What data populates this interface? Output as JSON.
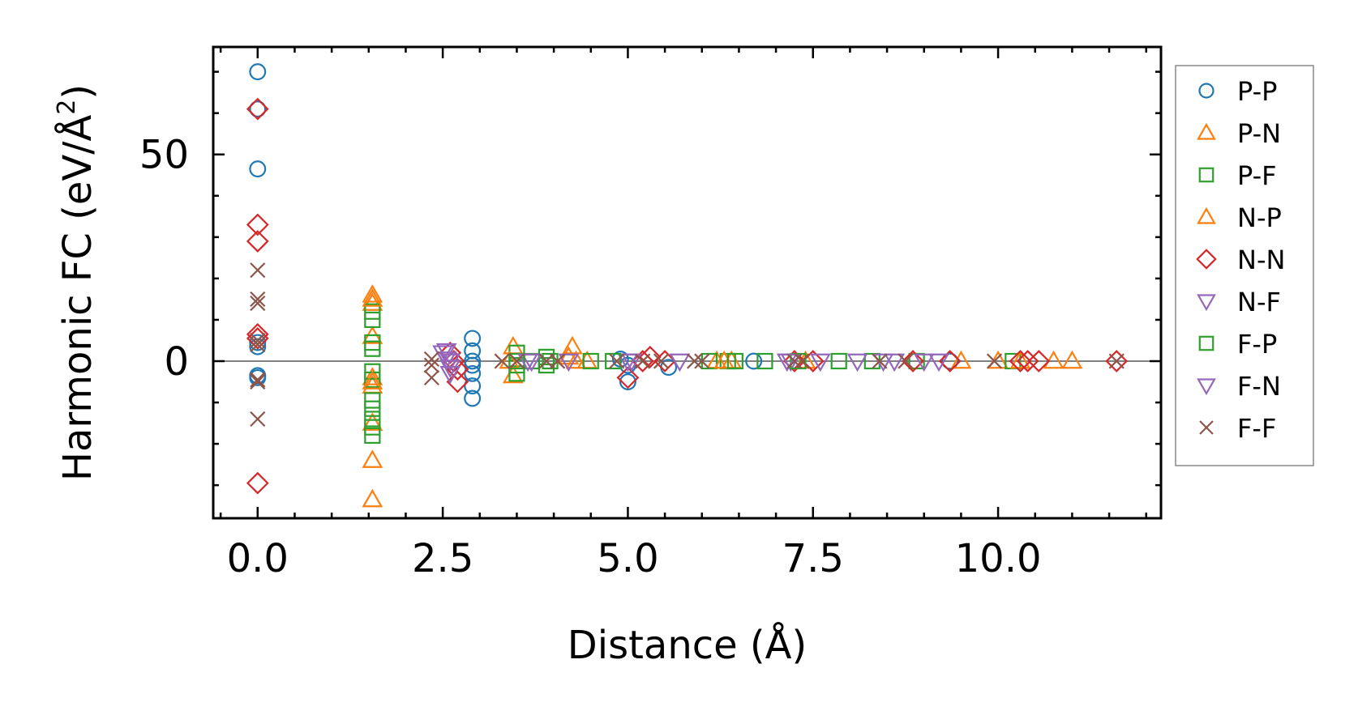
{
  "chart_data": {
    "type": "scatter",
    "xlabel": "Distance (Å)",
    "ylabel": "Harmonic FC (eV/Å²)",
    "ylabel_parts": {
      "main": "Harmonic FC (eV/Å",
      "sup": "2",
      "end": ")"
    },
    "xlim": [
      -0.6,
      12.2
    ],
    "ylim": [
      -38,
      76
    ],
    "x_ticks": [
      0.0,
      2.5,
      5.0,
      7.5,
      10.0
    ],
    "x_tick_labels": [
      "0.0",
      "2.5",
      "5.0",
      "7.5",
      "10.0"
    ],
    "y_ticks": [
      0,
      50
    ],
    "y_tick_labels": [
      "0",
      "50"
    ],
    "zero_line": true,
    "legend_position": "outside-right",
    "series": [
      {
        "name": "P-P",
        "marker": "circle",
        "color": "#1f77b4",
        "points": [
          [
            0,
            70
          ],
          [
            0,
            61
          ],
          [
            0,
            46.5
          ],
          [
            0,
            4.5
          ],
          [
            0,
            3.5
          ],
          [
            0,
            -3.5
          ],
          [
            0,
            -4
          ],
          [
            2.9,
            5.5
          ],
          [
            2.9,
            2.5
          ],
          [
            2.9,
            0
          ],
          [
            2.9,
            -1
          ],
          [
            2.9,
            -3
          ],
          [
            2.9,
            -6
          ],
          [
            2.9,
            -9
          ],
          [
            4.9,
            0.5
          ],
          [
            5.0,
            -5
          ],
          [
            5.0,
            -1
          ],
          [
            5.55,
            -1.5
          ],
          [
            6.7,
            0
          ],
          [
            9.35,
            0
          ]
        ]
      },
      {
        "name": "P-N",
        "marker": "triangle-up",
        "color": "#ff7f0e",
        "points": [
          [
            1.55,
            16
          ],
          [
            1.55,
            14
          ],
          [
            1.55,
            6
          ],
          [
            1.55,
            -4
          ],
          [
            1.55,
            -6
          ],
          [
            1.55,
            -15
          ],
          [
            1.55,
            -24
          ],
          [
            1.55,
            -33.5
          ],
          [
            3.45,
            3.5
          ],
          [
            3.45,
            -3.5
          ],
          [
            4.25,
            3.5
          ],
          [
            4.3,
            0
          ],
          [
            4.45,
            0
          ],
          [
            6.2,
            0
          ],
          [
            6.4,
            0
          ],
          [
            9.5,
            0
          ],
          [
            10.0,
            0
          ],
          [
            10.75,
            0
          ],
          [
            11.0,
            0
          ]
        ]
      },
      {
        "name": "P-F",
        "marker": "square",
        "color": "#2ca02c",
        "points": [
          [
            1.55,
            12
          ],
          [
            1.55,
            10
          ],
          [
            1.55,
            4.5
          ],
          [
            1.55,
            3
          ],
          [
            1.55,
            -2.5
          ],
          [
            1.55,
            -4.5
          ],
          [
            1.55,
            -9.5
          ],
          [
            1.55,
            -11.5
          ],
          [
            1.55,
            -14
          ],
          [
            1.55,
            -16
          ],
          [
            1.55,
            -18
          ],
          [
            3.5,
            2
          ],
          [
            3.5,
            -1
          ],
          [
            3.5,
            -3
          ],
          [
            3.7,
            0
          ],
          [
            3.9,
            1
          ],
          [
            3.9,
            -1
          ],
          [
            4.5,
            0
          ],
          [
            6.1,
            0
          ],
          [
            6.35,
            0
          ],
          [
            6.85,
            0
          ],
          [
            7.85,
            0
          ],
          [
            8.3,
            0
          ],
          [
            8.9,
            0
          ],
          [
            10.2,
            0
          ]
        ]
      },
      {
        "name": "N-P",
        "marker": "triangle-up",
        "color": "#ff7f0e",
        "points": [
          [
            1.55,
            15
          ],
          [
            1.55,
            -5
          ],
          [
            3.4,
            0
          ],
          [
            4.2,
            1
          ],
          [
            6.3,
            0
          ],
          [
            7.4,
            0
          ],
          [
            10.3,
            0
          ]
        ]
      },
      {
        "name": "N-N",
        "marker": "diamond",
        "color": "#d62728",
        "points": [
          [
            0,
            61
          ],
          [
            0,
            33
          ],
          [
            0,
            29
          ],
          [
            0,
            6.5
          ],
          [
            0,
            5.5
          ],
          [
            0,
            -29.5
          ],
          [
            2.6,
            2
          ],
          [
            2.65,
            0
          ],
          [
            2.7,
            -2
          ],
          [
            2.7,
            -5
          ],
          [
            5.0,
            -4
          ],
          [
            5.2,
            0
          ],
          [
            5.3,
            1
          ],
          [
            5.5,
            0
          ],
          [
            7.25,
            0
          ],
          [
            7.5,
            0
          ],
          [
            8.85,
            0
          ],
          [
            9.35,
            0
          ],
          [
            10.3,
            0
          ],
          [
            10.4,
            0
          ],
          [
            10.55,
            0
          ],
          [
            11.6,
            0
          ]
        ]
      },
      {
        "name": "N-F",
        "marker": "triangle-down",
        "color": "#9467bd",
        "points": [
          [
            2.55,
            2.5
          ],
          [
            2.55,
            0.5
          ],
          [
            2.6,
            -1.5
          ],
          [
            2.6,
            -3
          ],
          [
            3.7,
            0
          ],
          [
            4.2,
            0
          ],
          [
            5.0,
            0
          ],
          [
            5.7,
            0
          ],
          [
            7.2,
            0
          ],
          [
            7.6,
            0
          ],
          [
            8.1,
            0
          ],
          [
            8.6,
            0
          ],
          [
            9.2,
            0
          ]
        ]
      },
      {
        "name": "F-P",
        "marker": "square",
        "color": "#2ca02c",
        "points": [
          [
            3.5,
            0
          ],
          [
            3.95,
            0
          ],
          [
            4.8,
            0
          ],
          [
            6.45,
            0
          ],
          [
            7.3,
            0
          ]
        ]
      },
      {
        "name": "F-N",
        "marker": "triangle-down",
        "color": "#9467bd",
        "points": [
          [
            2.5,
            2
          ],
          [
            2.6,
            0
          ],
          [
            3.65,
            0
          ],
          [
            5.05,
            0
          ],
          [
            7.15,
            0
          ],
          [
            8.45,
            0
          ],
          [
            9.0,
            0
          ]
        ]
      },
      {
        "name": "F-F",
        "marker": "x",
        "color": "#8c564b",
        "points": [
          [
            0,
            22
          ],
          [
            0,
            15
          ],
          [
            0,
            14
          ],
          [
            0,
            5
          ],
          [
            0,
            4
          ],
          [
            0,
            -4.5
          ],
          [
            0,
            -5
          ],
          [
            0,
            -14
          ],
          [
            2.35,
            0.5
          ],
          [
            2.35,
            -1
          ],
          [
            2.35,
            -4
          ],
          [
            3.3,
            0
          ],
          [
            3.5,
            0
          ],
          [
            3.9,
            0
          ],
          [
            4.05,
            0
          ],
          [
            4.85,
            0
          ],
          [
            5.2,
            0
          ],
          [
            5.45,
            0
          ],
          [
            5.9,
            0
          ],
          [
            6.0,
            0
          ],
          [
            7.25,
            0
          ],
          [
            7.35,
            0
          ],
          [
            8.4,
            0
          ],
          [
            8.75,
            0
          ],
          [
            9.95,
            0
          ],
          [
            11.6,
            0
          ]
        ]
      }
    ]
  }
}
